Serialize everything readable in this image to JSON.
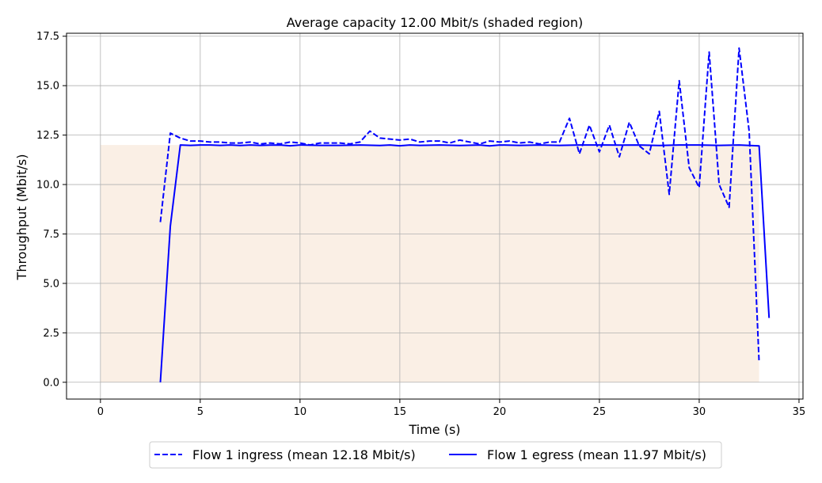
{
  "chart_data": {
    "type": "line",
    "title": "Average capacity 12.00 Mbit/s (shaded region)",
    "xlabel": "Time (s)",
    "ylabel": "Throughput (Mbit/s)",
    "xlim": [
      -1.7,
      35.2
    ],
    "ylim": [
      -0.85,
      17.65
    ],
    "xticks": [
      0,
      5,
      10,
      15,
      20,
      25,
      30,
      35
    ],
    "yticks": [
      0.0,
      2.5,
      5.0,
      7.5,
      10.0,
      12.5,
      15.0,
      17.5
    ],
    "xtick_labels": [
      "0",
      "5",
      "10",
      "15",
      "20",
      "25",
      "30",
      "35"
    ],
    "ytick_labels": [
      "0.0",
      "2.5",
      "5.0",
      "7.5",
      "10.0",
      "12.5",
      "15.0",
      "17.5"
    ],
    "grid": true,
    "legend_position": "bottom-center, below plot",
    "capacity": {
      "value": 12.0,
      "x_start": 0.0,
      "x_end": 33.0,
      "color": "#faefe5"
    },
    "series": [
      {
        "name": "Flow 1 ingress (mean 12.18 Mbit/s)",
        "style": "dashed",
        "color": "#0000ff",
        "x": [
          3.0,
          3.5,
          4.0,
          4.5,
          5.0,
          5.5,
          6.0,
          6.5,
          7.0,
          7.5,
          8.0,
          8.5,
          9.0,
          9.5,
          10.0,
          10.5,
          11.0,
          11.5,
          12.0,
          12.5,
          13.0,
          13.5,
          14.0,
          14.5,
          15.0,
          15.5,
          16.0,
          16.5,
          17.0,
          17.5,
          18.0,
          18.5,
          19.0,
          19.5,
          20.0,
          20.5,
          21.0,
          21.5,
          22.0,
          22.5,
          23.0,
          23.5,
          24.0,
          24.5,
          25.0,
          25.5,
          26.0,
          26.5,
          27.0,
          27.5,
          28.0,
          28.5,
          29.0,
          29.5,
          30.0,
          30.5,
          31.0,
          31.5,
          32.0,
          32.5,
          33.0
        ],
        "y": [
          8.1,
          12.6,
          12.35,
          12.2,
          12.2,
          12.15,
          12.15,
          12.1,
          12.1,
          12.15,
          12.05,
          12.1,
          12.05,
          12.15,
          12.1,
          12.0,
          12.1,
          12.1,
          12.1,
          12.05,
          12.15,
          12.7,
          12.35,
          12.3,
          12.25,
          12.3,
          12.15,
          12.2,
          12.2,
          12.1,
          12.25,
          12.15,
          12.05,
          12.2,
          12.15,
          12.2,
          12.1,
          12.15,
          12.05,
          12.15,
          12.15,
          13.35,
          11.55,
          13.0,
          11.65,
          13.0,
          11.4,
          13.15,
          11.95,
          11.55,
          13.7,
          9.5,
          15.25,
          10.85,
          9.85,
          16.7,
          10.0,
          8.85,
          16.9,
          12.7,
          1.0
        ]
      },
      {
        "name": "Flow 1 egress (mean 11.97 Mbit/s)",
        "style": "solid",
        "color": "#0000ff",
        "x": [
          3.0,
          3.5,
          4.0,
          4.5,
          5.0,
          5.5,
          6.0,
          6.5,
          7.0,
          7.5,
          8.0,
          8.5,
          9.0,
          9.5,
          10.0,
          11.0,
          12.0,
          13.0,
          14.0,
          14.5,
          15.0,
          15.5,
          16.0,
          17.0,
          18.0,
          19.0,
          19.5,
          20.0,
          21.0,
          22.0,
          23.0,
          24.0,
          25.0,
          26.0,
          27.0,
          28.0,
          29.0,
          30.0,
          31.0,
          32.0,
          33.0,
          33.5
        ],
        "y": [
          0.0,
          7.9,
          12.0,
          11.98,
          12.0,
          12.0,
          11.98,
          12.0,
          11.97,
          12.0,
          11.98,
          11.99,
          12.0,
          11.96,
          12.0,
          11.98,
          11.98,
          12.0,
          11.97,
          12.0,
          11.96,
          12.0,
          11.98,
          12.0,
          11.97,
          12.0,
          11.95,
          12.0,
          11.98,
          12.0,
          11.98,
          12.0,
          12.0,
          11.99,
          12.0,
          11.97,
          12.0,
          12.0,
          11.98,
          12.0,
          11.95,
          3.25
        ]
      }
    ]
  }
}
